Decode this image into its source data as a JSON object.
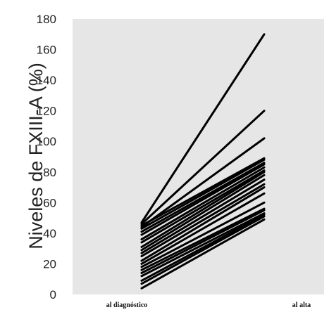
{
  "chart_data": {
    "type": "line",
    "ylabel": "Niveles de FXIII-A (%)",
    "categories": [
      "al diagnóstico",
      "al alta"
    ],
    "ylim": [
      0,
      180
    ],
    "yticks": [
      0,
      20,
      40,
      60,
      80,
      100,
      120,
      140,
      160,
      180
    ],
    "grid": false,
    "background": "#e6e6e6",
    "line_color": "#000000",
    "series": [
      {
        "values": [
          47,
          170
        ]
      },
      {
        "values": [
          46,
          120
        ]
      },
      {
        "values": [
          44,
          102
        ]
      },
      {
        "values": [
          45,
          89
        ]
      },
      {
        "values": [
          43,
          88
        ]
      },
      {
        "values": [
          41,
          86
        ]
      },
      {
        "values": [
          39,
          85
        ]
      },
      {
        "values": [
          36,
          83
        ]
      },
      {
        "values": [
          34,
          81
        ]
      },
      {
        "values": [
          31,
          80
        ]
      },
      {
        "values": [
          29,
          78
        ]
      },
      {
        "values": [
          27,
          75
        ]
      },
      {
        "values": [
          25,
          72
        ]
      },
      {
        "values": [
          22,
          70
        ]
      },
      {
        "values": [
          20,
          66
        ]
      },
      {
        "values": [
          18,
          60
        ]
      },
      {
        "values": [
          16,
          56
        ]
      },
      {
        "values": [
          14,
          55
        ]
      },
      {
        "values": [
          12,
          53
        ]
      },
      {
        "values": [
          9,
          52
        ]
      },
      {
        "values": [
          7,
          51
        ]
      },
      {
        "values": [
          4,
          49
        ]
      }
    ]
  }
}
